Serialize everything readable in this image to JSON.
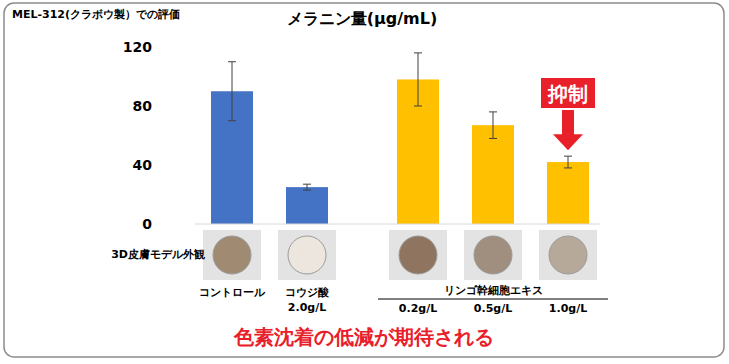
{
  "chart_data": {
    "type": "bar",
    "note": "MEL-312(クラボウ製）での評価",
    "title": "メラニン量(μg/mL)",
    "categories": [
      "コントロール",
      "コウジ酸 2.0g/L",
      "0.2g/L",
      "0.5g/L",
      "1.0g/L"
    ],
    "values": [
      90,
      25,
      98,
      67,
      42
    ],
    "errors": [
      20,
      2,
      18,
      9,
      4
    ],
    "colors": [
      "#4472c4",
      "#4472c4",
      "#ffc000",
      "#ffc000",
      "#ffc000"
    ],
    "group": {
      "label": "リンゴ幹細胞エキス",
      "categories": [
        "0.2g/L",
        "0.5g/L",
        "1.0g/L"
      ]
    },
    "image_row_label": "3D皮膚モデル外観",
    "annotation": {
      "text": "抑制",
      "category": "1.0g/L"
    },
    "footer": "色素沈着の低減が期待される",
    "ylim": [
      0,
      120
    ],
    "yticks": [
      0,
      40,
      80,
      120
    ],
    "grid": false
  }
}
